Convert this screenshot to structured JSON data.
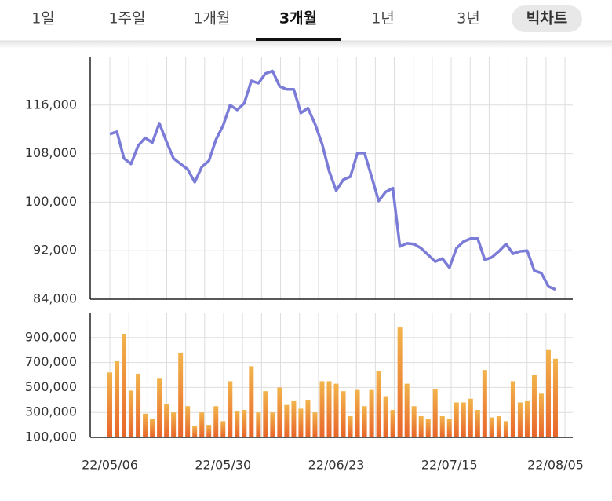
{
  "tabs": {
    "items": [
      "1일",
      "1주일",
      "1개월",
      "3개월",
      "1년",
      "3년"
    ],
    "active": 3,
    "button": "빅차트"
  },
  "chart_data": [
    {
      "type": "line",
      "series": [
        {
          "color": "#7b7bd8",
          "values": [
            111.2,
            111.6,
            107.2,
            106.3,
            109.3,
            110.6,
            109.8,
            113.0,
            110.0,
            107.2,
            106.3,
            105.4,
            103.3,
            105.8,
            106.8,
            110.3,
            112.6,
            116.0,
            115.2,
            116.3,
            120.0,
            119.6,
            121.2,
            121.6,
            119.1,
            118.6,
            118.6,
            114.7,
            115.5,
            112.9,
            109.6,
            105.1,
            101.9,
            103.7,
            104.2,
            108.1,
            108.1,
            104.2,
            100.2,
            101.7,
            102.3,
            92.7,
            93.2,
            93.1,
            92.4,
            91.3,
            90.2,
            90.7,
            89.2,
            92.4,
            93.5,
            94.0,
            94.0,
            90.5,
            90.9,
            91.9,
            93.1,
            91.5,
            91.9,
            92.0,
            88.7,
            88.3,
            86.1,
            85.6
          ]
        }
      ],
      "ylim": [
        84000,
        124000
      ],
      "yticks": [
        {
          "value": 84000,
          "label": "84,000"
        },
        {
          "value": 92000,
          "label": "92,000"
        },
        {
          "value": 100000,
          "label": "100,000"
        },
        {
          "value": 108000,
          "label": "108,000"
        },
        {
          "value": 116000,
          "label": "116,000"
        }
      ],
      "value_unit": 1000,
      "grid": true
    },
    {
      "type": "bar",
      "categories": [
        "22/05/06",
        null,
        null,
        null,
        null,
        null,
        null,
        null,
        null,
        null,
        null,
        null,
        null,
        null,
        null,
        null,
        "22/05/30",
        null,
        null,
        null,
        null,
        null,
        null,
        null,
        null,
        null,
        null,
        null,
        null,
        null,
        null,
        null,
        "22/06/23",
        null,
        null,
        null,
        null,
        null,
        null,
        null,
        null,
        null,
        null,
        null,
        null,
        null,
        null,
        null,
        "22/07/15",
        null,
        null,
        null,
        null,
        null,
        null,
        null,
        null,
        null,
        null,
        null,
        null,
        null,
        null,
        "22/08/05"
      ],
      "values": [
        620000,
        710000,
        930000,
        475000,
        610000,
        290000,
        250000,
        570000,
        370000,
        300000,
        780000,
        350000,
        190000,
        300000,
        200000,
        350000,
        230000,
        550000,
        310000,
        320000,
        670000,
        300000,
        470000,
        300000,
        500000,
        360000,
        390000,
        330000,
        400000,
        300000,
        550000,
        550000,
        530000,
        470000,
        270000,
        480000,
        350000,
        480000,
        630000,
        430000,
        320000,
        980000,
        530000,
        350000,
        270000,
        250000,
        490000,
        270000,
        250000,
        380000,
        380000,
        410000,
        320000,
        640000,
        260000,
        270000,
        230000,
        550000,
        380000,
        390000,
        600000,
        450000,
        800000,
        730000
      ],
      "colors": [
        "#f2b44c",
        "#e8652a"
      ],
      "ylim": [
        100000,
        1100000
      ],
      "yticks": [
        {
          "value": 100000,
          "label": "100,000"
        },
        {
          "value": 300000,
          "label": "300,000"
        },
        {
          "value": 500000,
          "label": "500,000"
        },
        {
          "value": 700000,
          "label": "700,000"
        },
        {
          "value": 900000,
          "label": "900,000"
        }
      ],
      "grid": true
    }
  ]
}
